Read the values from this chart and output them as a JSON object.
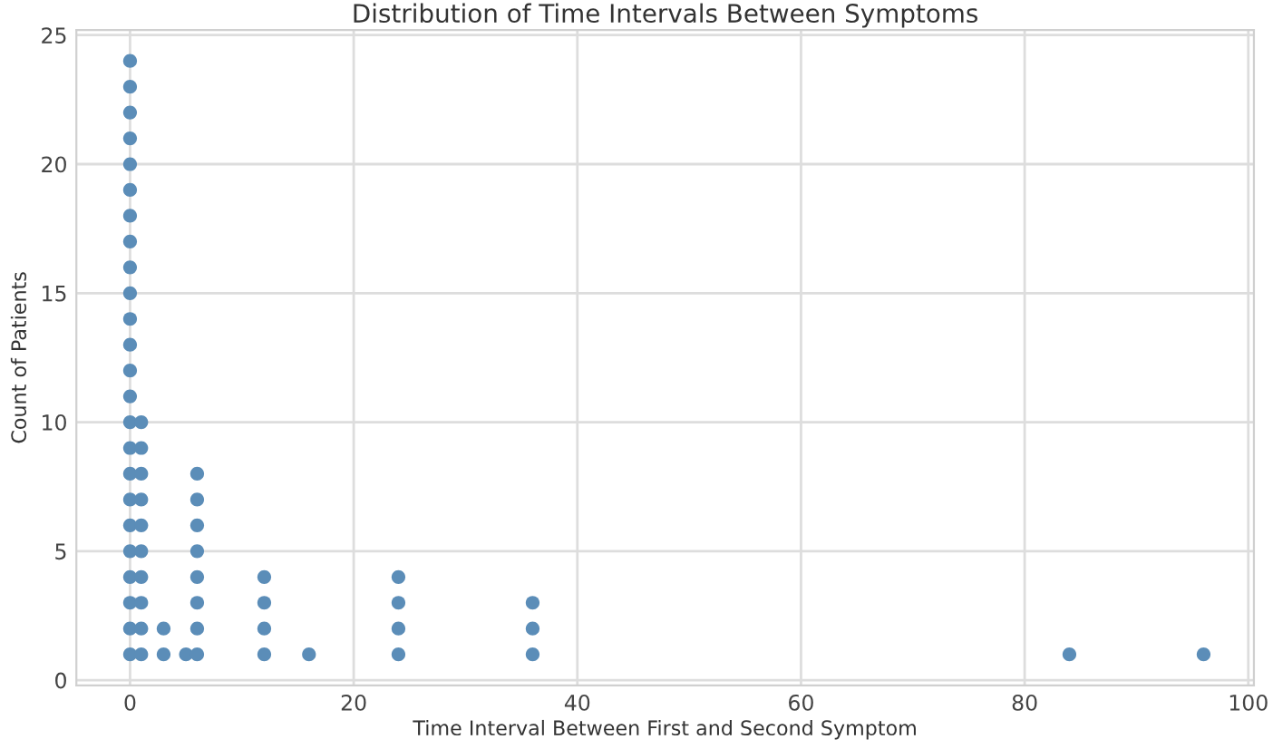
{
  "chart_data": {
    "type": "scatter",
    "title": "Distribution of Time Intervals Between Symptoms",
    "xlabel": "Time Interval Between First and Second Symptom",
    "ylabel": "Count of Patients",
    "series": [
      {
        "color": "#5b8db8",
        "x": [
          0,
          0,
          0,
          0,
          0,
          0,
          0,
          0,
          0,
          0,
          0,
          0,
          0,
          0,
          0,
          0,
          0,
          0,
          0,
          0,
          0,
          0,
          0,
          0,
          1,
          1,
          1,
          1,
          1,
          1,
          1,
          1,
          1,
          1,
          3,
          3,
          5,
          6,
          6,
          6,
          6,
          6,
          6,
          6,
          6,
          12,
          12,
          12,
          12,
          16,
          24,
          24,
          24,
          24,
          36,
          36,
          36,
          84,
          96
        ],
        "values": [
          1,
          2,
          3,
          4,
          5,
          6,
          7,
          8,
          9,
          10,
          11,
          12,
          13,
          14,
          15,
          16,
          17,
          18,
          19,
          20,
          21,
          22,
          23,
          24,
          1,
          2,
          3,
          4,
          5,
          6,
          7,
          8,
          9,
          10,
          1,
          2,
          1,
          1,
          2,
          3,
          4,
          5,
          6,
          7,
          8,
          1,
          2,
          3,
          4,
          1,
          1,
          2,
          3,
          4,
          1,
          2,
          3,
          1,
          1
        ]
      }
    ],
    "xlim": [
      -4.8,
      100.5
    ],
    "ylim": [
      -0.2,
      25.2
    ],
    "xticks": [
      0,
      20,
      40,
      60,
      80,
      100
    ],
    "yticks": [
      0,
      5,
      10,
      15,
      20,
      25
    ],
    "grid": true,
    "marker": "circle"
  }
}
